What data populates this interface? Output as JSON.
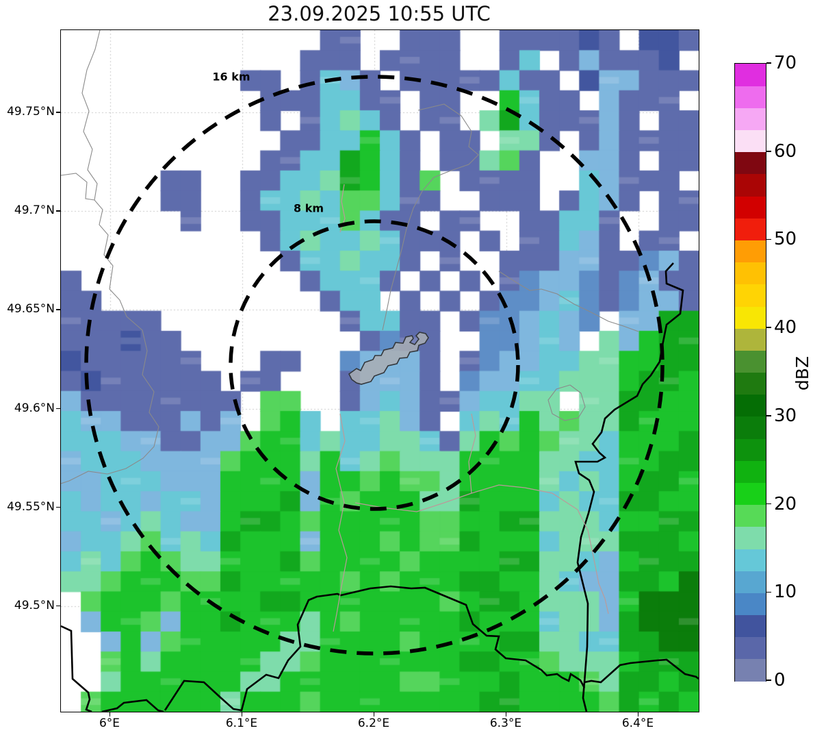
{
  "title": "23.09.2025 10:55 UTC",
  "axes": {
    "lat_tick_labels": [
      "49.75°N",
      "49.7°N",
      "49.65°N",
      "49.6°N",
      "49.55°N",
      "49.5°N"
    ],
    "lat_tick_values": [
      49.75,
      49.7,
      49.65,
      49.6,
      49.55,
      49.5
    ],
    "lon_tick_labels": [
      "6°E",
      "6.1°E",
      "6.2°E",
      "6.3°E",
      "6.4°E"
    ],
    "lon_tick_values": [
      6.0,
      6.1,
      6.2,
      6.3,
      6.4
    ]
  },
  "range_rings": {
    "outer_label": "16 km",
    "inner_label": "8 km",
    "radii_km": [
      16,
      8
    ]
  },
  "colorbar": {
    "label": "dBZ",
    "tick_values": [
      0,
      10,
      20,
      30,
      40,
      50,
      60,
      70
    ],
    "tick_labels": [
      "0",
      "10",
      "20",
      "30",
      "40",
      "50",
      "60",
      "70"
    ],
    "min": 0,
    "max": 70,
    "segment_step_dbz": 2.5,
    "colors_bottom_to_top": [
      "#7781b0",
      "#5a67a9",
      "#41549e",
      "#4a87c6",
      "#58a7d1",
      "#65c8d8",
      "#7edcab",
      "#57da57",
      "#18d018",
      "#10b210",
      "#0d920d",
      "#0b7d0b",
      "#056e05",
      "#1f7a10",
      "#4a9130",
      "#aeb53b",
      "#f8e604",
      "#ffd404",
      "#ffc103",
      "#ff9d05",
      "#f01e0c",
      "#d20000",
      "#aa0505",
      "#7f0711",
      "#fbdff5",
      "#f6a8f4",
      "#ee6cee",
      "#e02ee0"
    ]
  },
  "chart_data": {
    "type": "heatmap",
    "title": "23.09.2025 10:55 UTC",
    "value_unit": "dBZ",
    "x_range_deg_e": [
      5.9627,
      6.4456
    ],
    "y_range_deg_n": [
      49.7917,
      49.4465
    ],
    "radar_center": {
      "lon_e": 6.2,
      "lat_n": 49.622
    },
    "ring_radii_km": [
      16,
      8
    ],
    "grid_legend_dbz": {
      ".": "no echo",
      "a": "0-2.5",
      "b": "2.5-5",
      "c": "5-7.5",
      "d": "7.5-10",
      "e": "10-12.5",
      "f": "12.5-15",
      "g": "15-17.5",
      "h": "17.5-20",
      "i": "20-22.5",
      "j": "22.5-25",
      "k": "25-27.5",
      "l": "27.5-30"
    },
    "palette": {
      "a": "#7781b0",
      "b": "#5e6cac",
      "c": "#42569f",
      "d": "#5e8ec7",
      "e": "#7fb7de",
      "f": "#68c8d6",
      "g": "#7edcab",
      "h": "#55d55c",
      "i": "#1cc32c",
      "j": "#12a81e",
      "k": "#0d920d",
      "l": "#0b7d0b"
    },
    "grid_rows": [
      [
        "....",
        "....",
        "....",
        ".bb.",
        ".bbb",
        "..bb",
        "bbcb",
        ".ccb"
      ],
      [
        "....",
        "....",
        "....",
        "bbb.",
        "bbbb",
        "..bf",
        ".beb",
        "bbc."
      ],
      [
        "....",
        "....",
        ".bb.",
        "bfeb",
        ".bbb",
        "bbfb",
        "b.ce",
        "ebbb"
      ],
      [
        "....",
        "....",
        "..bb",
        "bffb",
        "b.bb",
        "..if",
        "bb.e",
        "bbb."
      ],
      [
        "....",
        "....",
        "..b.",
        "bfgf",
        "b.bb",
        ".gjf",
        "bbbe",
        "b.bb"
      ],
      [
        "....",
        "....",
        "...b",
        "bffi",
        "fb.b",
        "b.gg",
        "b.be",
        "bbbb"
      ],
      [
        "....",
        "....",
        "..bb",
        "ffji",
        "fb.b",
        "bghb",
        "..ee",
        "b.bb"
      ],
      [
        "....",
        ".bb.",
        ".bbf",
        "fgji",
        "fbh.",
        "bbbb",
        "..fe",
        "bbb."
      ],
      [
        "....",
        ".bb.",
        ".bff",
        "gfhh",
        "fbb.",
        ".bbb",
        ".bfe",
        "b.bb"
      ],
      [
        "....",
        "..b.",
        ".bbf",
        "ffhf",
        "bb.b",
        "b..b",
        "bffb",
        "..bb"
      ],
      [
        "....",
        "....",
        "..bf",
        "gffg",
        "fbbb",
        ".b.b",
        "bfeb",
        ".bb."
      ],
      [
        "....",
        "....",
        "...b",
        "ffgf",
        "fb.b",
        "..bb",
        "beeb",
        "bdeb"
      ],
      [
        "b...",
        "....",
        "....",
        "bfff",
        "b.b.",
        "b.bd",
        "eedb",
        "debb"
      ],
      [
        "bb..",
        "....",
        "....",
        ".bff",
        ".b.b",
        ".bdd",
        "efdb",
        "deeb"
      ],
      [
        "bbbb",
        "b...",
        "....",
        "..bf",
        "fbb.",
        "bdde",
        "fed.",
        "eejj"
      ],
      [
        "bbbc",
        "bb..",
        "....",
        "...b",
        "dbb.",
        ".dde",
        "fe.g",
        "eijj"
      ],
      [
        "cbbb",
        "bbb.",
        "..bb",
        "..de",
        "eeb.",
        "bdee",
        "ffgg",
        "iijj"
      ],
      [
        "bcbb",
        "bbbb",
        ".bb.",
        "..be",
        "eeb.",
        "deef",
        "fggg",
        "ijji"
      ],
      [
        "ebbb",
        "bbbb",
        "b.hh",
        "..be",
        "febb",
        "effg",
        "g.gg",
        "jjii"
      ],
      [
        "feeb",
        "bbeb",
        "e.hi",
        "f.ff",
        "geb.",
        "fgfi",
        "ghgg",
        "jiii"
      ],
      [
        "fffe",
        "ebbe",
        "ehii",
        "fgff",
        "ggfb",
        "gihi",
        "hggf",
        "iiij"
      ],
      [
        "efff",
        "eeee",
        "hiii",
        "gifg",
        "hggg",
        "iiii",
        "ggff",
        "iijj"
      ],
      [
        "eeff",
        "feee",
        "iiii",
        "eiih",
        "ihhg",
        "iiii",
        "gfgf",
        "ijji"
      ],
      [
        "feff",
        "effe",
        "iiij",
        "eihi",
        "iigg",
        "jiii",
        "fgff",
        "jjii"
      ],
      [
        "ffef",
        "gfee",
        "ijji",
        "hiii",
        "iihh",
        "iijj",
        "gggf",
        "iijj"
      ],
      [
        "effg",
        "hfgf",
        "jiii",
        "eiii",
        "hihh",
        "jiii",
        "fggg",
        "jjji"
      ],
      [
        "fgfh",
        "ihgg",
        "iiij",
        "hiii",
        "ihii",
        "iijj",
        "ggfe",
        "ijjj"
      ],
      [
        "gghi",
        "iihh",
        "jiii",
        "iihi",
        "hiii",
        "jjii",
        "gfee",
        "jjil"
      ],
      [
        ".hii",
        "ihii",
        "iijj",
        "iiii",
        "iiih",
        "ijji",
        "ggge",
        "illl"
      ],
      [
        ".eii",
        "heii",
        "jiii",
        "gihi",
        "iiii",
        "jiii",
        "fgge",
        "jlll"
      ],
      [
        "..ei",
        "ehii",
        "iiig",
        "giii",
        "ihii",
        "iijj",
        "ggff",
        "jjll"
      ],
      [
        "..hi",
        "giii",
        "iigg",
        "hiii",
        "iiii",
        "jjii",
        "hggg",
        "ijjj"
      ],
      [
        "..gi",
        "iiii",
        "iggi",
        "iiii",
        "ihhi",
        "iiji",
        "iihg",
        "jjij"
      ],
      [
        ".hii",
        "iiii",
        "giii",
        "hiii",
        "iiii",
        "ijji",
        "iiih",
        "jiji"
      ]
    ]
  },
  "map": {
    "grid_color": "#c9c9c9",
    "border_color": "#000000",
    "admin_line_color": "#8a8a8a",
    "road_line_color": "#bb9a9a",
    "airport_fill": "#a9aeb4",
    "airport_outline": "#33373c"
  }
}
